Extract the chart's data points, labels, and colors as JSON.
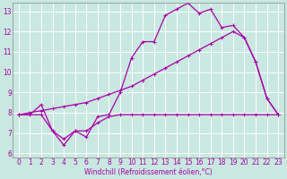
{
  "xlabel": "Windchill (Refroidissement éolien,°C)",
  "bg_color": "#c8e8e0",
  "grid_color": "#ffffff",
  "line_color": "#aa00aa",
  "xlim": [
    -0.5,
    23.5
  ],
  "ylim": [
    5.8,
    13.4
  ],
  "xticks": [
    0,
    1,
    2,
    3,
    4,
    5,
    6,
    7,
    8,
    9,
    10,
    11,
    12,
    13,
    14,
    15,
    16,
    17,
    18,
    19,
    20,
    21,
    22,
    23
  ],
  "yticks": [
    6,
    7,
    8,
    9,
    10,
    11,
    12,
    13
  ],
  "line1_x": [
    0,
    1,
    2,
    3,
    4,
    5,
    6,
    7,
    8,
    9,
    10,
    11,
    12,
    13,
    14,
    15,
    16,
    17,
    18,
    19,
    20,
    21,
    22,
    23
  ],
  "line1_y": [
    7.9,
    7.9,
    8.4,
    7.1,
    6.4,
    7.1,
    6.8,
    7.8,
    7.9,
    9.0,
    10.7,
    11.5,
    11.5,
    12.8,
    13.1,
    13.4,
    12.9,
    13.1,
    12.2,
    12.3,
    11.7,
    10.5,
    8.7,
    7.9
  ],
  "line2_x": [
    0,
    1,
    2,
    3,
    4,
    5,
    6,
    7,
    8,
    9,
    10,
    11,
    12,
    13,
    14,
    15,
    16,
    17,
    18,
    19,
    20,
    21,
    22,
    23
  ],
  "line2_y": [
    7.9,
    7.9,
    7.9,
    7.1,
    6.7,
    7.1,
    7.1,
    7.5,
    7.8,
    7.9,
    7.9,
    7.9,
    7.9,
    7.9,
    7.9,
    7.9,
    7.9,
    7.9,
    7.9,
    7.9,
    7.9,
    7.9,
    7.9,
    7.9
  ],
  "line3_x": [
    0,
    1,
    2,
    3,
    4,
    5,
    6,
    7,
    8,
    9,
    10,
    11,
    12,
    13,
    14,
    15,
    16,
    17,
    18,
    19,
    20,
    21,
    22,
    23
  ],
  "line3_y": [
    7.9,
    8.0,
    8.1,
    8.2,
    8.3,
    8.4,
    8.5,
    8.7,
    8.9,
    9.1,
    9.3,
    9.6,
    9.9,
    10.2,
    10.5,
    10.8,
    11.1,
    11.4,
    11.7,
    12.0,
    11.7,
    10.5,
    8.7,
    7.9
  ],
  "tick_fontsize": 5.5,
  "line_width": 0.9,
  "marker_size": 2.5
}
